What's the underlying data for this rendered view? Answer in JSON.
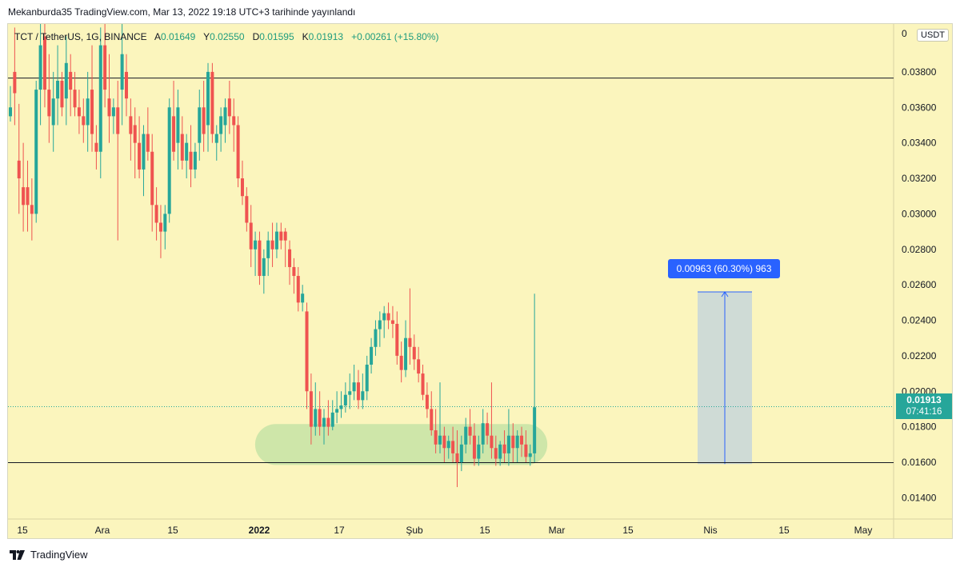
{
  "header": {
    "publish_text": "Mekanburda35 TradingView.com, Mar 13, 2022 19:18 UTC+3 tarihinde yayınlandı"
  },
  "symbol": {
    "name": "TCT / TetherUS, 1G, BINANCE",
    "open_label": "A",
    "open": "0.01649",
    "high_label": "Y",
    "high": "0.02550",
    "low_label": "D",
    "low": "0.01595",
    "close_label": "K",
    "close": "0.01913",
    "change": "+0.00261 (+15.80%)"
  },
  "currency": "USDT",
  "last_price": {
    "price": "0.01913",
    "countdown": "07:41:16"
  },
  "measure": {
    "label": "0.00963 (60.30%) 963",
    "from": 0.0159,
    "to": 0.0256
  },
  "colors": {
    "background": "#fbf5bd",
    "up": "#26a69a",
    "down": "#ef5350",
    "measure_box": "#cfdbd6",
    "measure_line": "#2962ff",
    "highlight": "#c5e3a6"
  },
  "footer": {
    "logo_text": "TradingView"
  },
  "chart_data": {
    "type": "candlestick",
    "title": "TCT / TetherUS, 1G, BINANCE",
    "ylim": [
      0.0128,
      0.0407
    ],
    "y_ticks": [
      "0.01400",
      "0.01600",
      "0.01800",
      "0.02000",
      "0.02200",
      "0.02400",
      "0.02600",
      "0.02800",
      "0.03000",
      "0.03200",
      "0.03400",
      "0.03600",
      "0.03800",
      "0"
    ],
    "x_ticks": [
      "15",
      "Ara",
      "15",
      "2022",
      "17",
      "Şub",
      "15",
      "Mar",
      "15",
      "Nis",
      "15",
      "May"
    ],
    "horizontal_lines": [
      0.03765,
      0.01598
    ],
    "current_price_line": 0.01913,
    "support_zone": [
      0.01585,
      0.01815
    ],
    "candles": [
      [
        0.0355,
        0.0372,
        0.0352,
        0.036
      ],
      [
        0.038,
        0.0405,
        0.035,
        0.0368
      ],
      [
        0.033,
        0.0362,
        0.03,
        0.032
      ],
      [
        0.0315,
        0.034,
        0.029,
        0.0305
      ],
      [
        0.0315,
        0.033,
        0.029,
        0.0305
      ],
      [
        0.0305,
        0.032,
        0.0285,
        0.03
      ],
      [
        0.03,
        0.0375,
        0.0295,
        0.037
      ],
      [
        0.037,
        0.041,
        0.035,
        0.0395
      ],
      [
        0.04,
        0.042,
        0.036,
        0.037
      ],
      [
        0.037,
        0.039,
        0.034,
        0.0355
      ],
      [
        0.035,
        0.038,
        0.0335,
        0.0365
      ],
      [
        0.0365,
        0.0395,
        0.035,
        0.0375
      ],
      [
        0.0375,
        0.038,
        0.0355,
        0.036
      ],
      [
        0.0365,
        0.04,
        0.035,
        0.0385
      ],
      [
        0.038,
        0.039,
        0.0355,
        0.037
      ],
      [
        0.037,
        0.038,
        0.0355,
        0.036
      ],
      [
        0.036,
        0.037,
        0.0345,
        0.0355
      ],
      [
        0.0355,
        0.0365,
        0.034,
        0.035
      ],
      [
        0.035,
        0.038,
        0.0335,
        0.0365
      ],
      [
        0.037,
        0.0395,
        0.0335,
        0.0345
      ],
      [
        0.034,
        0.035,
        0.0325,
        0.0335
      ],
      [
        0.0335,
        0.0405,
        0.032,
        0.0395
      ],
      [
        0.0395,
        0.041,
        0.036,
        0.037
      ],
      [
        0.0365,
        0.039,
        0.034,
        0.0355
      ],
      [
        0.0355,
        0.0365,
        0.0345,
        0.036
      ],
      [
        0.036,
        0.0375,
        0.0285,
        0.0345
      ],
      [
        0.037,
        0.041,
        0.035,
        0.039
      ],
      [
        0.038,
        0.039,
        0.0355,
        0.0365
      ],
      [
        0.0355,
        0.0365,
        0.033,
        0.0345
      ],
      [
        0.035,
        0.036,
        0.032,
        0.034
      ],
      [
        0.034,
        0.0355,
        0.032,
        0.0325
      ],
      [
        0.0325,
        0.035,
        0.031,
        0.0345
      ],
      [
        0.0345,
        0.036,
        0.033,
        0.0335
      ],
      [
        0.0335,
        0.0345,
        0.029,
        0.0305
      ],
      [
        0.0305,
        0.0315,
        0.0285,
        0.0295
      ],
      [
        0.0295,
        0.0305,
        0.0275,
        0.029
      ],
      [
        0.029,
        0.0305,
        0.028,
        0.03
      ],
      [
        0.03,
        0.0365,
        0.0295,
        0.036
      ],
      [
        0.0355,
        0.0375,
        0.033,
        0.0335
      ],
      [
        0.034,
        0.037,
        0.0325,
        0.036
      ],
      [
        0.0345,
        0.0355,
        0.0325,
        0.033
      ],
      [
        0.033,
        0.0345,
        0.032,
        0.034
      ],
      [
        0.0335,
        0.035,
        0.0315,
        0.0325
      ],
      [
        0.0325,
        0.034,
        0.032,
        0.0335
      ],
      [
        0.034,
        0.037,
        0.033,
        0.036
      ],
      [
        0.036,
        0.0375,
        0.0335,
        0.0345
      ],
      [
        0.035,
        0.0385,
        0.0335,
        0.038
      ],
      [
        0.038,
        0.0385,
        0.034,
        0.0345
      ],
      [
        0.034,
        0.035,
        0.033,
        0.0345
      ],
      [
        0.0345,
        0.036,
        0.0335,
        0.0355
      ],
      [
        0.035,
        0.0365,
        0.034,
        0.036
      ],
      [
        0.0365,
        0.0375,
        0.0345,
        0.0355
      ],
      [
        0.0355,
        0.0365,
        0.0335,
        0.035
      ],
      [
        0.035,
        0.0355,
        0.0315,
        0.032
      ],
      [
        0.032,
        0.033,
        0.0305,
        0.031
      ],
      [
        0.031,
        0.0315,
        0.029,
        0.0295
      ],
      [
        0.0295,
        0.0305,
        0.027,
        0.028
      ],
      [
        0.028,
        0.029,
        0.0265,
        0.0285
      ],
      [
        0.0285,
        0.029,
        0.026,
        0.0265
      ],
      [
        0.0265,
        0.028,
        0.0255,
        0.0275
      ],
      [
        0.0275,
        0.029,
        0.0265,
        0.0285
      ],
      [
        0.0285,
        0.0295,
        0.027,
        0.028
      ],
      [
        0.028,
        0.0295,
        0.0275,
        0.029
      ],
      [
        0.029,
        0.0295,
        0.028,
        0.0285
      ],
      [
        0.029,
        0.0292,
        0.027,
        0.0285
      ],
      [
        0.028,
        0.0285,
        0.026,
        0.027
      ],
      [
        0.027,
        0.0275,
        0.0255,
        0.0265
      ],
      [
        0.0265,
        0.027,
        0.0245,
        0.025
      ],
      [
        0.025,
        0.026,
        0.0245,
        0.0255
      ],
      [
        0.0245,
        0.025,
        0.019,
        0.02
      ],
      [
        0.02,
        0.021,
        0.017,
        0.018
      ],
      [
        0.018,
        0.0205,
        0.0175,
        0.019
      ],
      [
        0.019,
        0.02,
        0.0175,
        0.018
      ],
      [
        0.018,
        0.019,
        0.017,
        0.0185
      ],
      [
        0.0185,
        0.0195,
        0.0175,
        0.018
      ],
      [
        0.018,
        0.0195,
        0.0178,
        0.0188
      ],
      [
        0.0188,
        0.02,
        0.0182,
        0.019
      ],
      [
        0.019,
        0.02,
        0.0185,
        0.0192
      ],
      [
        0.0192,
        0.0205,
        0.0188,
        0.0198
      ],
      [
        0.0198,
        0.021,
        0.019,
        0.02
      ],
      [
        0.02,
        0.0215,
        0.0195,
        0.0205
      ],
      [
        0.0205,
        0.0212,
        0.019,
        0.0195
      ],
      [
        0.0195,
        0.021,
        0.019,
        0.02
      ],
      [
        0.02,
        0.022,
        0.0195,
        0.0215
      ],
      [
        0.0215,
        0.023,
        0.021,
        0.0225
      ],
      [
        0.0225,
        0.024,
        0.022,
        0.0235
      ],
      [
        0.0235,
        0.0245,
        0.0225,
        0.024
      ],
      [
        0.024,
        0.0248,
        0.023,
        0.0244
      ],
      [
        0.0244,
        0.025,
        0.0235,
        0.024
      ],
      [
        0.024,
        0.0248,
        0.023,
        0.0238
      ],
      [
        0.0238,
        0.0245,
        0.0215,
        0.022
      ],
      [
        0.022,
        0.0228,
        0.0205,
        0.0212
      ],
      [
        0.0212,
        0.024,
        0.0208,
        0.023
      ],
      [
        0.023,
        0.0258,
        0.0215,
        0.0225
      ],
      [
        0.0225,
        0.0232,
        0.0212,
        0.0218
      ],
      [
        0.0218,
        0.0225,
        0.0205,
        0.021
      ],
      [
        0.021,
        0.0215,
        0.0195,
        0.0198
      ],
      [
        0.0198,
        0.0205,
        0.0185,
        0.019
      ],
      [
        0.019,
        0.02,
        0.0175,
        0.0178
      ],
      [
        0.0178,
        0.019,
        0.0165,
        0.017
      ],
      [
        0.017,
        0.0205,
        0.0165,
        0.0175
      ],
      [
        0.0175,
        0.018,
        0.016,
        0.0168
      ],
      [
        0.0168,
        0.0175,
        0.0162,
        0.0172
      ],
      [
        0.0172,
        0.018,
        0.016,
        0.0165
      ],
      [
        0.0165,
        0.0178,
        0.0146,
        0.016
      ],
      [
        0.016,
        0.0175,
        0.0155,
        0.017
      ],
      [
        0.017,
        0.0185,
        0.0165,
        0.018
      ],
      [
        0.018,
        0.019,
        0.017,
        0.0175
      ],
      [
        0.0175,
        0.0182,
        0.0158,
        0.0162
      ],
      [
        0.0162,
        0.0175,
        0.0158,
        0.017
      ],
      [
        0.017,
        0.019,
        0.0165,
        0.0182
      ],
      [
        0.0182,
        0.0188,
        0.017,
        0.0175
      ],
      [
        0.0175,
        0.0205,
        0.0162,
        0.0168
      ],
      [
        0.0168,
        0.0175,
        0.0158,
        0.0162
      ],
      [
        0.0162,
        0.0172,
        0.0158,
        0.017
      ],
      [
        0.017,
        0.0178,
        0.016,
        0.0165
      ],
      [
        0.0165,
        0.019,
        0.0158,
        0.0175
      ],
      [
        0.0175,
        0.0182,
        0.016,
        0.0168
      ],
      [
        0.0168,
        0.0178,
        0.016,
        0.0175
      ],
      [
        0.0175,
        0.018,
        0.0163,
        0.017
      ],
      [
        0.017,
        0.0178,
        0.016,
        0.0163
      ],
      [
        0.0163,
        0.017,
        0.0158,
        0.0165
      ],
      [
        0.0165,
        0.0255,
        0.016,
        0.0191
      ]
    ]
  }
}
